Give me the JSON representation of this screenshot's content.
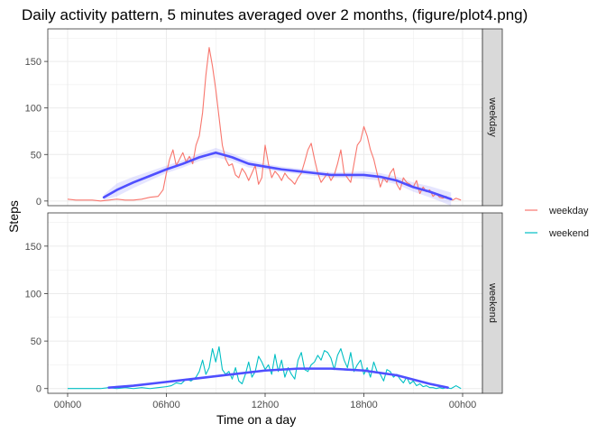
{
  "chart_data": {
    "type": "line",
    "title": "Daily activity pattern, 5 minutes averaged over 2 months, (figure/plot4.png)",
    "xlabel": "Time on a day",
    "ylabel": "Steps",
    "x_unit": "hours",
    "xlim": [
      0,
      24
    ],
    "ylim": [
      -5,
      185
    ],
    "x_ticks": [
      0,
      6,
      12,
      18,
      24
    ],
    "x_tick_labels": [
      "00h00",
      "06h00",
      "12h00",
      "18h00",
      "00h00"
    ],
    "y_ticks": [
      0,
      50,
      100,
      150
    ],
    "y_tick_labels": [
      "0",
      "50",
      "100",
      "150"
    ],
    "grid": true,
    "legend_position": "right",
    "facets": [
      "weekday",
      "weekend"
    ],
    "legend": [
      {
        "name": "weekday",
        "color": "#F8766D"
      },
      {
        "name": "weekend",
        "color": "#00BFC4"
      }
    ],
    "smooth_color": "#4F4FFF",
    "series": [
      {
        "name": "weekday",
        "facet": "weekday",
        "color": "#F8766D",
        "x": [
          0.0,
          0.5,
          1.0,
          1.5,
          2.0,
          2.5,
          3.0,
          3.5,
          4.0,
          4.5,
          5.0,
          5.5,
          5.8,
          6.0,
          6.2,
          6.4,
          6.6,
          6.8,
          7.0,
          7.2,
          7.4,
          7.6,
          7.8,
          8.0,
          8.2,
          8.4,
          8.6,
          8.8,
          9.0,
          9.2,
          9.4,
          9.6,
          9.8,
          10.0,
          10.2,
          10.4,
          10.6,
          10.8,
          11.0,
          11.2,
          11.4,
          11.6,
          11.8,
          12.0,
          12.2,
          12.4,
          12.6,
          12.8,
          13.0,
          13.2,
          13.4,
          13.6,
          13.8,
          14.0,
          14.2,
          14.4,
          14.6,
          14.8,
          15.0,
          15.2,
          15.4,
          15.6,
          15.8,
          16.0,
          16.2,
          16.4,
          16.6,
          16.8,
          17.0,
          17.2,
          17.4,
          17.6,
          17.8,
          18.0,
          18.2,
          18.4,
          18.6,
          18.8,
          19.0,
          19.2,
          19.4,
          19.6,
          19.8,
          20.0,
          20.2,
          20.4,
          20.6,
          20.8,
          21.0,
          21.2,
          21.4,
          21.6,
          21.8,
          22.0,
          22.2,
          22.4,
          22.6,
          22.8,
          23.0,
          23.2,
          23.4,
          23.6,
          23.9
        ],
        "y": [
          2,
          1,
          1,
          1,
          0,
          1,
          2,
          1,
          1,
          2,
          4,
          5,
          12,
          30,
          45,
          55,
          38,
          45,
          52,
          42,
          48,
          40,
          60,
          70,
          95,
          135,
          165,
          145,
          120,
          90,
          60,
          45,
          38,
          40,
          28,
          25,
          35,
          30,
          22,
          30,
          38,
          18,
          25,
          60,
          40,
          25,
          32,
          28,
          22,
          30,
          25,
          22,
          18,
          25,
          30,
          42,
          55,
          62,
          45,
          30,
          20,
          25,
          30,
          22,
          28,
          40,
          55,
          30,
          25,
          20,
          40,
          60,
          65,
          80,
          70,
          55,
          45,
          30,
          15,
          25,
          20,
          30,
          35,
          18,
          12,
          25,
          20,
          18,
          15,
          22,
          8,
          15,
          10,
          12,
          5,
          8,
          4,
          3,
          5,
          2,
          1,
          3,
          1
        ]
      },
      {
        "name": "weekend",
        "facet": "weekend",
        "color": "#00BFC4",
        "x": [
          0.0,
          0.5,
          1.0,
          1.5,
          2.0,
          2.5,
          3.0,
          3.5,
          4.0,
          4.5,
          5.0,
          5.5,
          6.0,
          6.3,
          6.6,
          6.9,
          7.2,
          7.5,
          7.8,
          8.0,
          8.2,
          8.4,
          8.6,
          8.8,
          9.0,
          9.2,
          9.4,
          9.6,
          9.8,
          10.0,
          10.2,
          10.4,
          10.6,
          10.8,
          11.0,
          11.2,
          11.4,
          11.6,
          11.8,
          12.0,
          12.2,
          12.4,
          12.6,
          12.8,
          13.0,
          13.2,
          13.4,
          13.6,
          13.8,
          14.0,
          14.2,
          14.4,
          14.6,
          14.8,
          15.0,
          15.2,
          15.4,
          15.6,
          15.8,
          16.0,
          16.2,
          16.4,
          16.6,
          16.8,
          17.0,
          17.2,
          17.4,
          17.6,
          17.8,
          18.0,
          18.2,
          18.4,
          18.6,
          18.8,
          19.0,
          19.2,
          19.4,
          19.6,
          19.8,
          20.0,
          20.2,
          20.4,
          20.6,
          20.8,
          21.0,
          21.2,
          21.4,
          21.6,
          21.8,
          22.0,
          22.2,
          22.4,
          22.6,
          22.8,
          23.0,
          23.3,
          23.6,
          23.9
        ],
        "y": [
          0,
          0,
          0,
          0,
          0,
          1,
          0,
          1,
          0,
          1,
          0,
          1,
          2,
          3,
          6,
          5,
          10,
          8,
          12,
          18,
          30,
          15,
          22,
          42,
          28,
          44,
          20,
          15,
          18,
          10,
          22,
          8,
          5,
          15,
          28,
          12,
          18,
          34,
          28,
          20,
          25,
          15,
          36,
          18,
          30,
          12,
          22,
          15,
          10,
          30,
          38,
          20,
          18,
          25,
          28,
          35,
          30,
          40,
          38,
          32,
          20,
          35,
          42,
          30,
          22,
          38,
          18,
          25,
          30,
          15,
          22,
          12,
          28,
          18,
          15,
          8,
          20,
          18,
          12,
          15,
          10,
          6,
          12,
          5,
          8,
          3,
          5,
          2,
          3,
          1,
          1,
          0,
          1,
          0,
          1,
          0,
          3,
          0
        ]
      }
    ],
    "smoothers": [
      {
        "facet": "weekday",
        "x": [
          2.2,
          3,
          4,
          5,
          6,
          7,
          8,
          9,
          10,
          11,
          12,
          13,
          14,
          15,
          16,
          17,
          18,
          19,
          20,
          21,
          22,
          23.3
        ],
        "y": [
          4,
          12,
          20,
          27,
          34,
          40,
          47,
          52,
          47,
          40,
          37,
          34,
          32,
          30,
          28,
          28,
          28,
          26,
          22,
          15,
          10,
          2
        ],
        "band": [
          3,
          7,
          6,
          5,
          4,
          4,
          4,
          5,
          4,
          4,
          3,
          3,
          3,
          3,
          3,
          3,
          4,
          4,
          4,
          5,
          6,
          7
        ]
      },
      {
        "facet": "weekend",
        "x": [
          2.5,
          4,
          6,
          8,
          10,
          12,
          14,
          16,
          18,
          20,
          22,
          23.1
        ],
        "y": [
          1,
          3,
          7,
          11,
          15,
          19,
          21,
          21,
          19,
          14,
          5,
          1
        ],
        "band": [
          1,
          1,
          1,
          1,
          1,
          1,
          1,
          1,
          1,
          1,
          1,
          1
        ]
      }
    ]
  }
}
